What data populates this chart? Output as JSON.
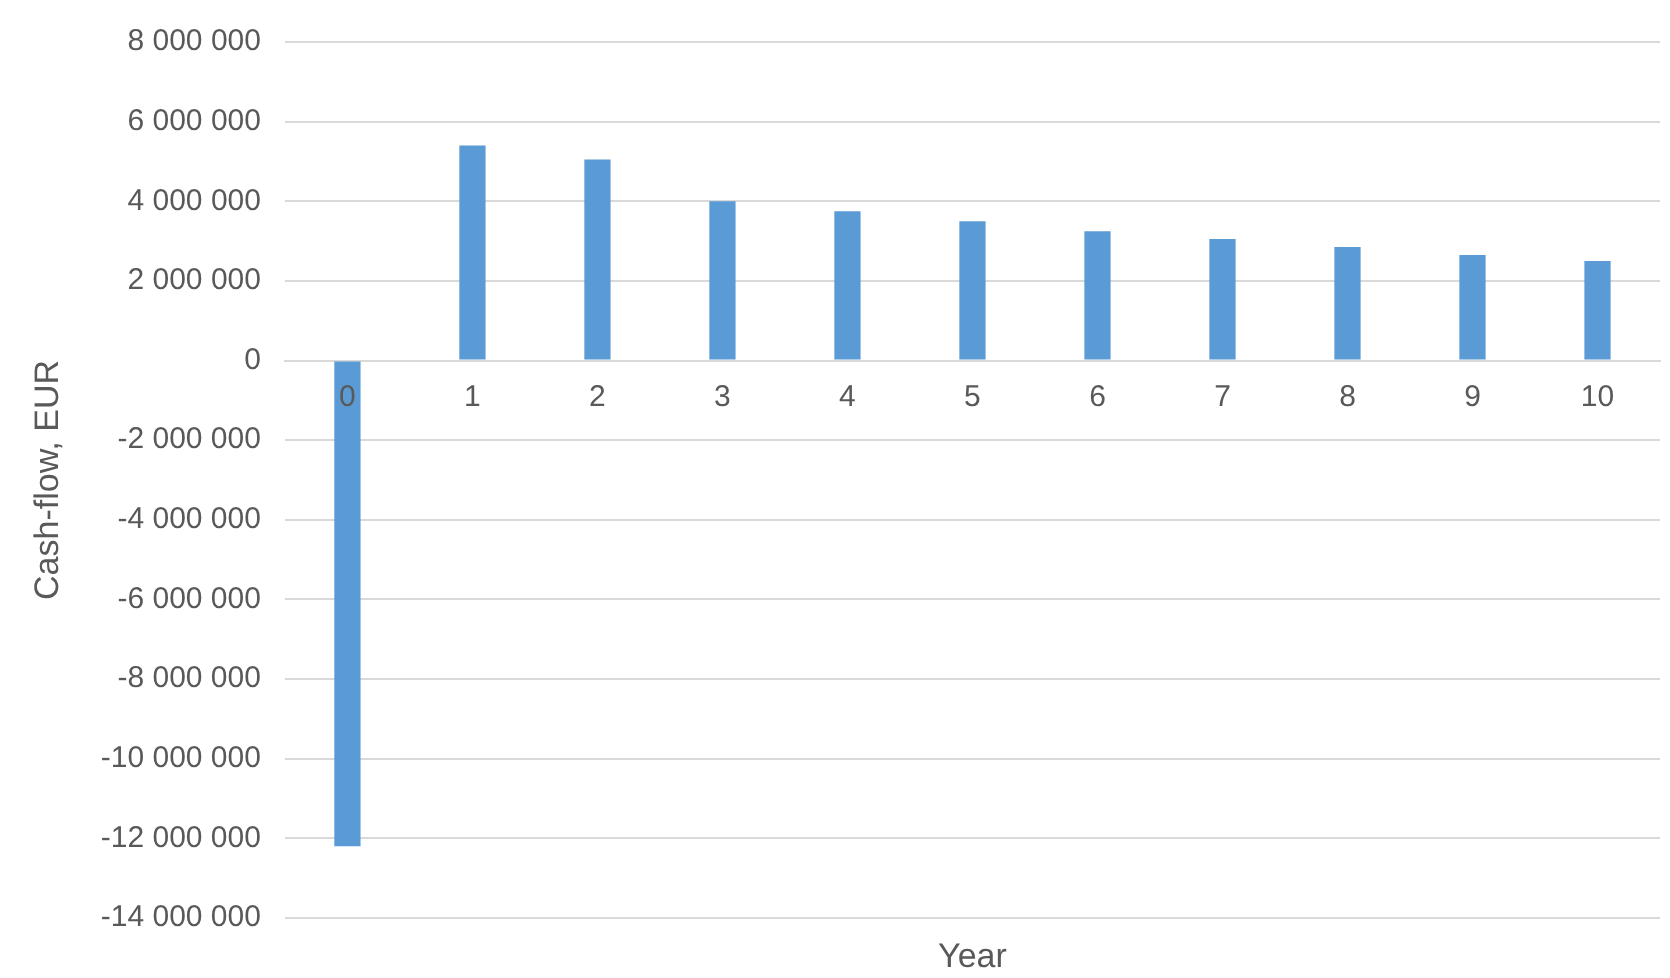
{
  "chart_data": {
    "type": "bar",
    "xlabel": "Year",
    "ylabel": "Cash-flow, EUR",
    "categories": [
      "0",
      "1",
      "2",
      "3",
      "4",
      "5",
      "6",
      "7",
      "8",
      "9",
      "10"
    ],
    "values": [
      -12200000,
      5400000,
      5050000,
      4000000,
      3750000,
      3500000,
      3250000,
      3050000,
      2850000,
      2650000,
      2500000
    ],
    "color": "#5b9bd5",
    "ylim": [
      -14000000,
      8000000
    ],
    "yticks": [
      {
        "value": -14000000,
        "label": "-14 000 000"
      },
      {
        "value": -12000000,
        "label": "-12 000 000"
      },
      {
        "value": -10000000,
        "label": "-10 000 000"
      },
      {
        "value": -8000000,
        "label": "-8 000 000"
      },
      {
        "value": -6000000,
        "label": "-6 000 000"
      },
      {
        "value": -4000000,
        "label": "-4 000 000"
      },
      {
        "value": -2000000,
        "label": "-2 000 000"
      },
      {
        "value": 0,
        "label": "0"
      },
      {
        "value": 2000000,
        "label": "2 000 000"
      },
      {
        "value": 4000000,
        "label": "4 000 000"
      },
      {
        "value": 6000000,
        "label": "6 000 000"
      },
      {
        "value": 8000000,
        "label": "8 000 000"
      }
    ],
    "grid": "y"
  }
}
